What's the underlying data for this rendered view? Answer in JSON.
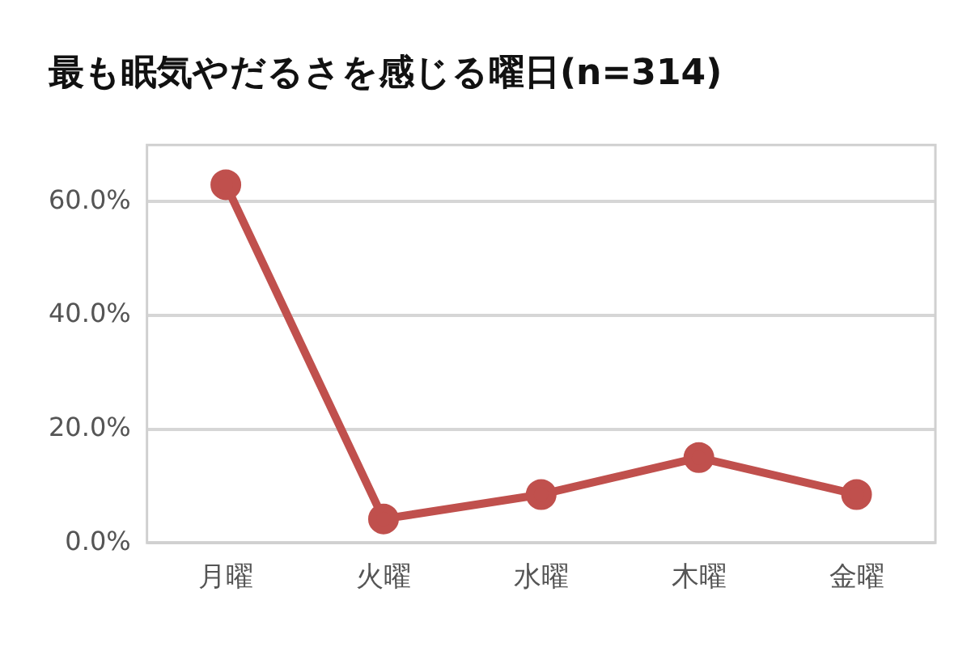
{
  "chart_data": {
    "type": "line",
    "title": "最も眠気やだるさを感じる曜日(n=314)",
    "categories": [
      "月曜",
      "火曜",
      "水曜",
      "木曜",
      "金曜"
    ],
    "series": [
      {
        "color": "#c0504d",
        "values": [
          63.0,
          4.2,
          8.5,
          15.0,
          8.5
        ]
      }
    ],
    "ylim": [
      0,
      70
    ],
    "yticks": [
      {
        "value": 0,
        "label": "0.0%"
      },
      {
        "value": 20,
        "label": "20.0%"
      },
      {
        "value": 40,
        "label": "40.0%"
      },
      {
        "value": 60,
        "label": "60.0%"
      }
    ],
    "grid": "y",
    "legend": false,
    "marker": "circle",
    "line_style": "solid"
  }
}
